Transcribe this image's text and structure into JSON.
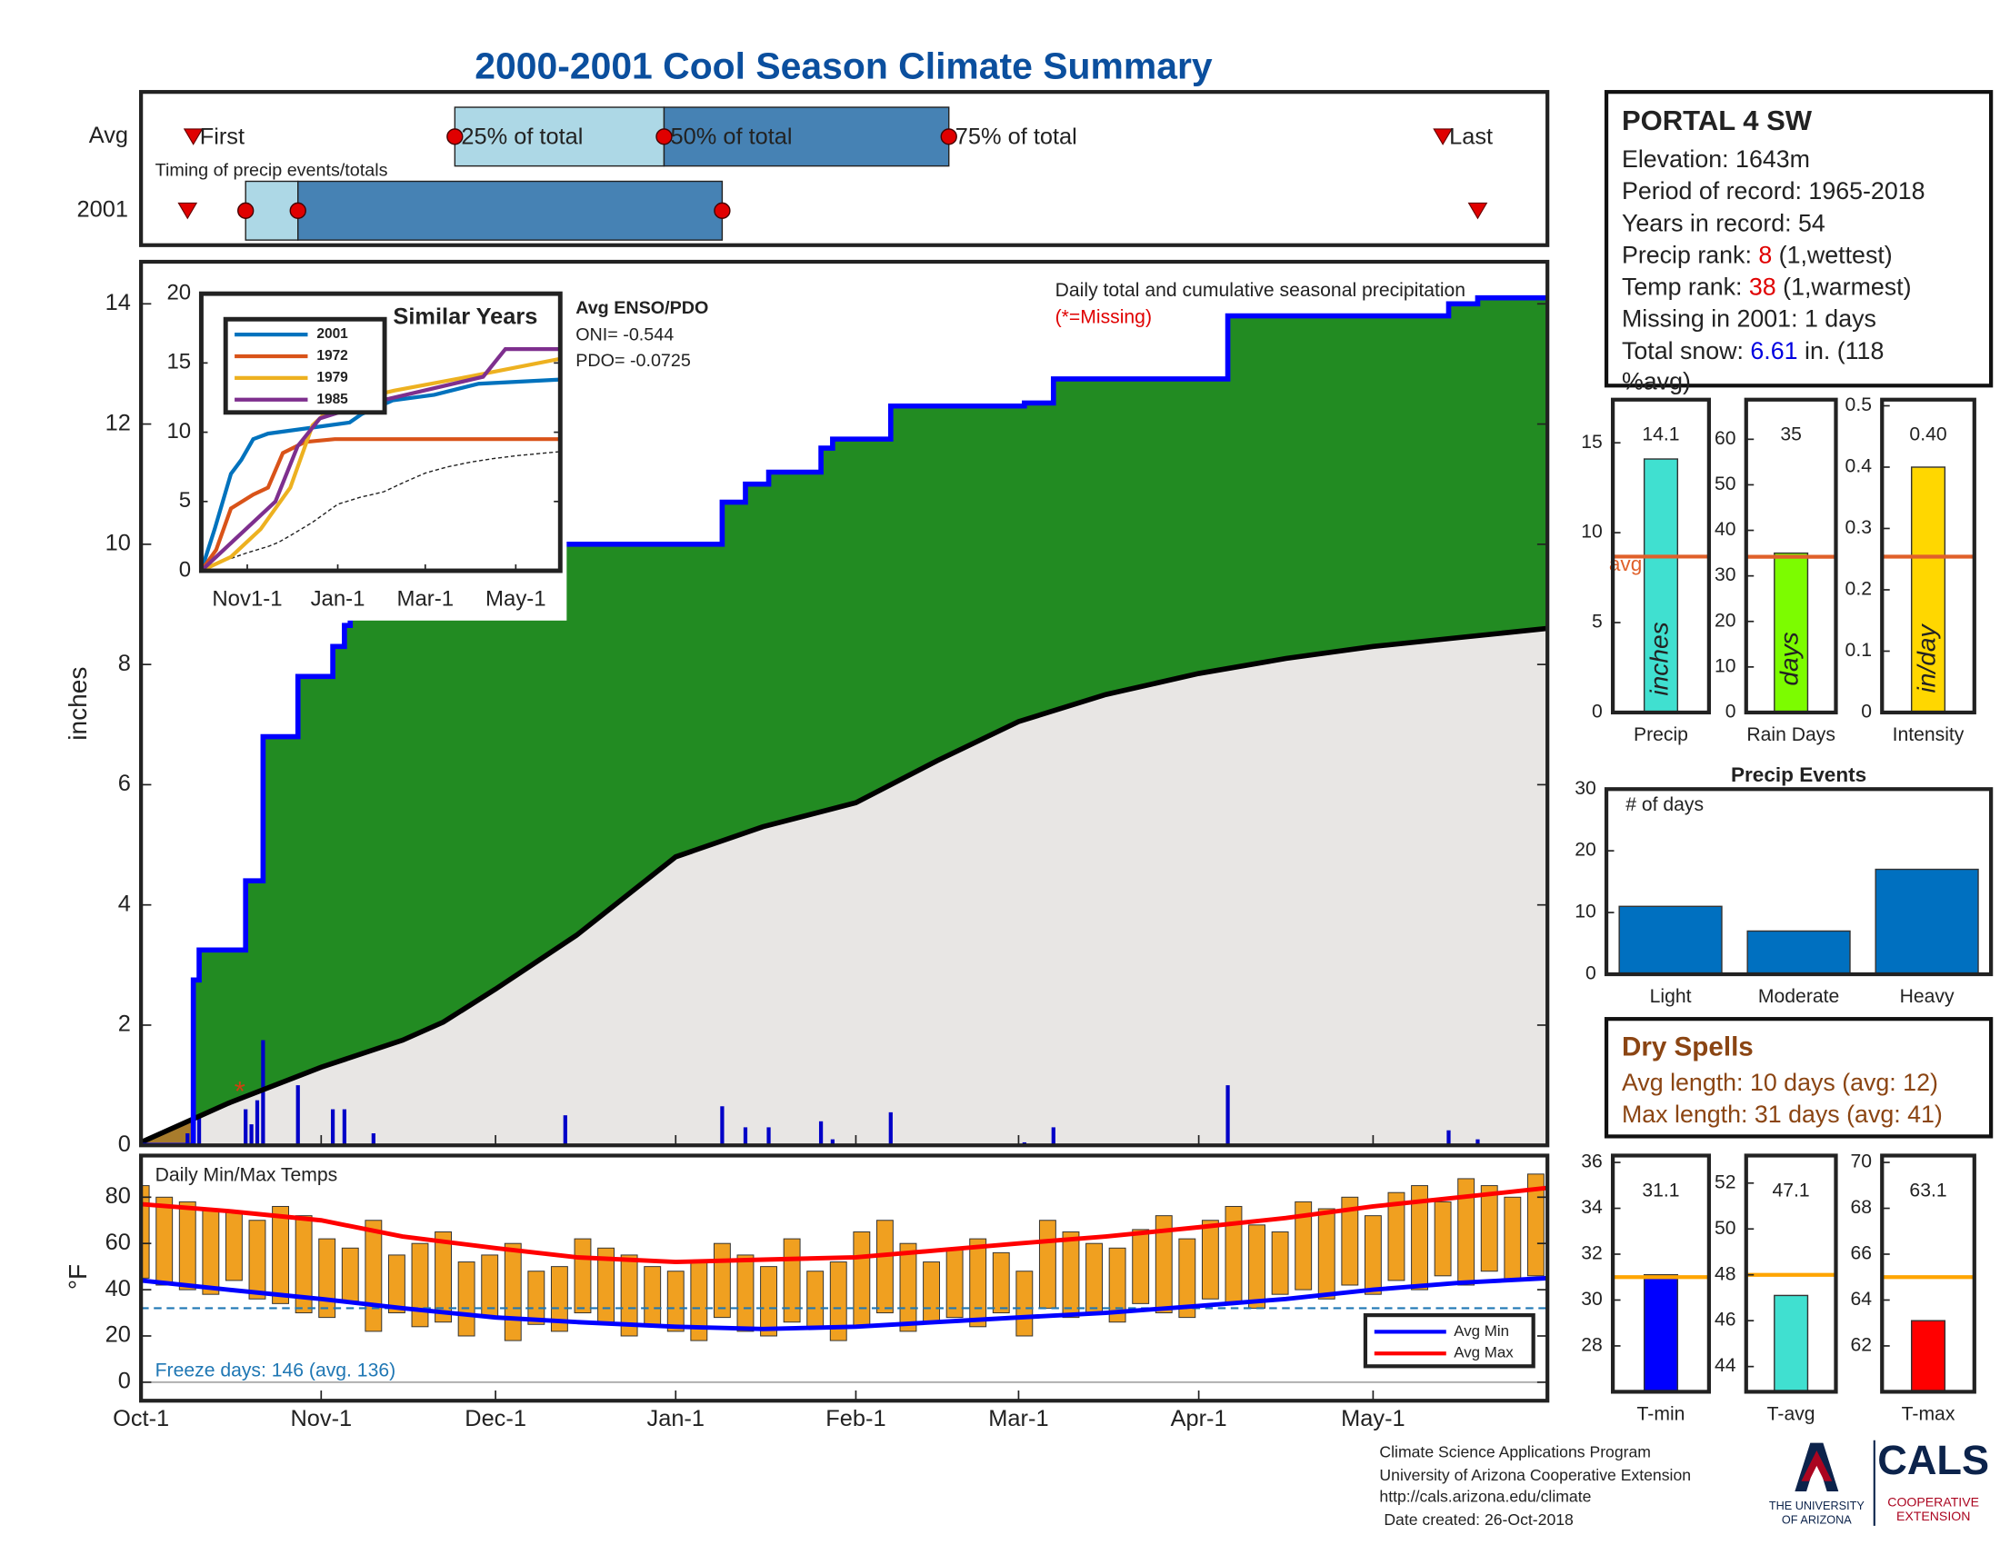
{
  "title": "2000-2001 Cool Season Climate Summary",
  "station": {
    "name": "PORTAL 4 SW",
    "elevation": "Elevation: 1643m",
    "period": "Period of record: 1965-2018",
    "years": "Years in record: 54",
    "precip_rank": [
      "Precip rank: ",
      "8",
      " (1,wettest)"
    ],
    "temp_rank": [
      "Temp rank: ",
      "38",
      " (1,warmest)"
    ],
    "missing": "Missing in 2001: 1 days",
    "snow": [
      "Total snow: ",
      "6.61",
      " in. (118",
      "%avg)"
    ]
  },
  "enso": {
    "title": "Avg ENSO/PDO",
    "oni": "ONI= -0.544",
    "pdo": "PDO= -0.0725"
  },
  "dry_spells": {
    "title": "Dry Spells",
    "avg": "Avg length: 10 days (avg: 12)",
    "max": "Max length: 31 days (avg: 41)"
  },
  "footer": [
    "Climate Science Applications Program",
    "University of Arizona Cooperative Extension",
    "http://cals.arizona.edu/climate",
    " Date created: 26-Oct-2018"
  ],
  "logo": {
    "university": [
      "THE UNIVERSITY",
      "OF ARIZONA"
    ],
    "cals": "CALS",
    "extension": [
      "COOPERATIVE",
      "EXTENSION"
    ]
  },
  "chart_data": [
    {
      "type": "timing",
      "label": "Timing of precip events/totals",
      "marker_labels": [
        "First",
        "25% of total",
        "50% of total",
        "75% of total",
        "Last"
      ],
      "series": [
        {
          "name": "Avg",
          "values": [
            9,
            54,
            90,
            139,
            224
          ]
        },
        {
          "name": "2001",
          "values": [
            8,
            18,
            27,
            100,
            230
          ]
        }
      ],
      "colors": [
        "#add8e6",
        "#4682b4"
      ],
      "xlim": [
        0,
        242
      ]
    },
    {
      "type": "area",
      "title": "Daily total and cumulative seasonal precipitation",
      "note": "(*=Missing)",
      "ylabel": "inches",
      "xlim": [
        0,
        242
      ],
      "ylim": [
        0,
        14.7
      ],
      "yticks": [
        0,
        2,
        4,
        6,
        8,
        10,
        12,
        14
      ],
      "cumulative": {
        "color": "#0000ff",
        "x": [
          0,
          9,
          10,
          18,
          21,
          27,
          33,
          35,
          36,
          41,
          100,
          104,
          108,
          117,
          119,
          129,
          152,
          157,
          187,
          225,
          230,
          242
        ],
        "values": [
          0,
          2.75,
          3.25,
          4.4,
          6.8,
          7.8,
          8.3,
          8.65,
          9.1,
          10.0,
          10.7,
          11.0,
          11.2,
          11.6,
          11.75,
          12.3,
          12.35,
          12.75,
          13.8,
          14.0,
          14.1,
          14.1
        ]
      },
      "average": {
        "color": "#000000",
        "x": [
          0,
          15,
          31,
          45,
          52,
          61,
          75,
          92,
          107,
          123,
          137,
          151,
          166,
          182,
          197,
          212,
          227,
          242
        ],
        "values": [
          0.05,
          0.7,
          1.3,
          1.75,
          2.05,
          2.6,
          3.5,
          4.8,
          5.3,
          5.7,
          6.4,
          7.05,
          7.5,
          7.85,
          8.1,
          8.3,
          8.45,
          8.6
        ]
      },
      "daily": {
        "color": "#0000c8",
        "x": [
          8,
          9,
          10,
          18,
          19,
          20,
          21,
          27,
          33,
          35,
          40,
          73,
          100,
          104,
          108,
          117,
          119,
          129,
          152,
          157,
          187,
          225,
          230
        ],
        "values": [
          0.2,
          2.75,
          0.5,
          0.6,
          0.35,
          0.75,
          1.75,
          1.0,
          0.6,
          0.6,
          0.2,
          0.5,
          0.65,
          0.3,
          0.3,
          0.4,
          0.1,
          0.55,
          0.05,
          0.3,
          1.0,
          0.25,
          0.1
        ]
      },
      "missing": {
        "label": "*",
        "color": "#d04010",
        "x": [
          17
        ],
        "values": [
          0.95
        ]
      },
      "above_color": "#228b22",
      "below_color": "#a87c2c",
      "avg_fill": "#e8e6e4"
    },
    {
      "type": "line",
      "title": "Similar Years",
      "xlim": [
        0,
        242
      ],
      "ylim": [
        0,
        20
      ],
      "yticks": [
        0,
        5,
        10,
        15,
        20
      ],
      "xticks": [
        {
          "value": 31,
          "label": "Nov1-1"
        },
        {
          "value": 92,
          "label": "Jan-1"
        },
        {
          "value": 151,
          "label": "Mar-1"
        },
        {
          "value": 212,
          "label": "May-1"
        }
      ],
      "series": [
        {
          "name": "2001",
          "color": "#0072bd",
          "x": [
            0,
            9,
            20,
            27,
            35,
            45,
            100,
            108,
            129,
            157,
            187,
            242
          ],
          "values": [
            0,
            3,
            7,
            8,
            9.5,
            9.9,
            10.7,
            11.3,
            12.3,
            12.7,
            13.5,
            13.8
          ]
        },
        {
          "name": "1972",
          "color": "#d95319",
          "x": [
            0,
            10,
            20,
            35,
            45,
            55,
            70,
            90,
            242
          ],
          "values": [
            0,
            1.5,
            4.5,
            5.5,
            6,
            8.5,
            9.3,
            9.5,
            9.5
          ]
        },
        {
          "name": "1979",
          "color": "#edb120",
          "x": [
            0,
            20,
            40,
            60,
            75,
            90,
            130,
            180,
            242
          ],
          "values": [
            0,
            1,
            3,
            6,
            10.5,
            12,
            13,
            14,
            15.3
          ]
        },
        {
          "name": "1985",
          "color": "#7e2f8e",
          "x": [
            0,
            15,
            30,
            50,
            65,
            80,
            110,
            150,
            190,
            205,
            242
          ],
          "values": [
            0,
            1.5,
            3,
            5,
            9,
            11,
            12,
            13,
            14,
            16,
            16
          ]
        }
      ]
    },
    {
      "type": "range_bar",
      "title": "Daily Min/Max Temps",
      "ylabel": "°F",
      "note": "Freeze days: 146 (avg. 136)",
      "xlim": [
        0,
        242
      ],
      "ylim": [
        -8,
        98
      ],
      "yticks": [
        0,
        20,
        40,
        60,
        80
      ],
      "xticks": [
        {
          "value": 0,
          "label": "Oct-1"
        },
        {
          "value": 31,
          "label": "Nov-1"
        },
        {
          "value": 61,
          "label": "Dec-1"
        },
        {
          "value": 92,
          "label": "Jan-1"
        },
        {
          "value": 123,
          "label": "Feb-1"
        },
        {
          "value": 151,
          "label": "Mar-1"
        },
        {
          "value": 182,
          "label": "Apr-1"
        },
        {
          "value": 212,
          "label": "May-1"
        }
      ],
      "freeze": 32,
      "freeze_color": "#1f77b4",
      "bar_color": "#f0a020",
      "x": [
        0,
        4,
        8,
        12,
        16,
        20,
        24,
        28,
        32,
        36,
        40,
        44,
        48,
        52,
        56,
        60,
        64,
        68,
        72,
        76,
        80,
        84,
        88,
        92,
        96,
        100,
        104,
        108,
        112,
        116,
        120,
        124,
        128,
        132,
        136,
        140,
        144,
        148,
        152,
        156,
        160,
        164,
        168,
        172,
        176,
        180,
        184,
        188,
        192,
        196,
        200,
        204,
        208,
        212,
        216,
        220,
        224,
        228,
        232,
        236,
        240
      ],
      "max": [
        85,
        80,
        78,
        75,
        74,
        70,
        76,
        72,
        62,
        58,
        70,
        55,
        60,
        65,
        52,
        55,
        60,
        48,
        50,
        62,
        58,
        55,
        50,
        48,
        52,
        60,
        55,
        50,
        62,
        48,
        52,
        65,
        70,
        60,
        52,
        58,
        62,
        56,
        48,
        70,
        65,
        60,
        58,
        66,
        72,
        62,
        70,
        76,
        68,
        65,
        78,
        75,
        80,
        72,
        82,
        85,
        78,
        88,
        85,
        80,
        90
      ],
      "min": [
        45,
        42,
        40,
        38,
        44,
        36,
        34,
        30,
        28,
        35,
        22,
        30,
        24,
        26,
        20,
        28,
        18,
        25,
        22,
        30,
        26,
        20,
        24,
        22,
        18,
        28,
        22,
        20,
        26,
        24,
        18,
        24,
        30,
        22,
        26,
        28,
        24,
        30,
        20,
        32,
        28,
        30,
        26,
        34,
        30,
        28,
        36,
        34,
        32,
        38,
        40,
        36,
        42,
        38,
        44,
        40,
        46,
        42,
        48,
        44,
        46
      ],
      "series": [
        {
          "name": "Avg Min",
          "color": "#0000ff",
          "x": [
            0,
            15,
            31,
            45,
            61,
            75,
            92,
            107,
            123,
            137,
            151,
            166,
            182,
            197,
            212,
            227,
            242
          ],
          "values": [
            44,
            40,
            36,
            32,
            28,
            26,
            24,
            23,
            24,
            26,
            28,
            30,
            33,
            36,
            40,
            43,
            45
          ]
        },
        {
          "name": "Avg Max",
          "color": "#ff0000",
          "x": [
            0,
            15,
            31,
            45,
            61,
            75,
            92,
            107,
            123,
            137,
            151,
            166,
            182,
            197,
            212,
            227,
            242
          ],
          "values": [
            77,
            74,
            70,
            63,
            58,
            54,
            52,
            53,
            54,
            57,
            60,
            63,
            67,
            71,
            76,
            80,
            84
          ]
        }
      ]
    },
    {
      "type": "bar",
      "categories": [
        "Precip"
      ],
      "values": [
        14.1
      ],
      "color": "#40e0d0",
      "avg": 8.67,
      "avg_label": "avg",
      "avg_color": "#e0602a",
      "unit": "inches",
      "ylim": [
        0,
        17.4
      ],
      "yticks": [
        0,
        5,
        10,
        15
      ]
    },
    {
      "type": "bar",
      "categories": [
        "Rain Days"
      ],
      "values": [
        35
      ],
      "color": "#7cfc00",
      "avg": 34.2,
      "avg_color": "#e0602a",
      "unit": "days",
      "ylim": [
        0,
        68.7
      ],
      "yticks": [
        0,
        10,
        20,
        30,
        40,
        50,
        60
      ]
    },
    {
      "type": "bar",
      "categories": [
        "Intensity"
      ],
      "values": [
        0.4
      ],
      "value_labels": [
        "0.40"
      ],
      "color": "#ffd700",
      "avg": 0.254,
      "avg_color": "#e0602a",
      "unit": "in/day",
      "ylim": [
        0,
        0.51
      ],
      "yticks": [
        0,
        0.1,
        0.2,
        0.3,
        0.4,
        0.5
      ]
    },
    {
      "type": "bar",
      "title": "Precip Events",
      "ylabel": "# of days",
      "categories": [
        "Light",
        "Moderate",
        "Heavy"
      ],
      "values": [
        11,
        7,
        17
      ],
      "color": "#0070c0",
      "ylim": [
        0,
        30
      ],
      "yticks": [
        0,
        10,
        20,
        30
      ]
    },
    {
      "type": "bar",
      "categories": [
        "T-min"
      ],
      "values": [
        31.1
      ],
      "color": "#0000ff",
      "avg": 31.0,
      "avg_color": "#ffa500",
      "ylim": [
        26,
        36.3
      ],
      "yticks": [
        28,
        30,
        32,
        34,
        36
      ]
    },
    {
      "type": "bar",
      "categories": [
        "T-avg"
      ],
      "values": [
        47.1
      ],
      "color": "#40e0d0",
      "avg": 48.0,
      "avg_color": "#ffa500",
      "ylim": [
        42.9,
        53.2
      ],
      "yticks": [
        44,
        46,
        48,
        50,
        52
      ]
    },
    {
      "type": "bar",
      "categories": [
        "T-max"
      ],
      "values": [
        63.1
      ],
      "color": "#ff0000",
      "avg": 65,
      "avg_color": "#ffa500",
      "ylim": [
        60,
        70.3
      ],
      "yticks": [
        62,
        64,
        66,
        68,
        70
      ]
    }
  ]
}
